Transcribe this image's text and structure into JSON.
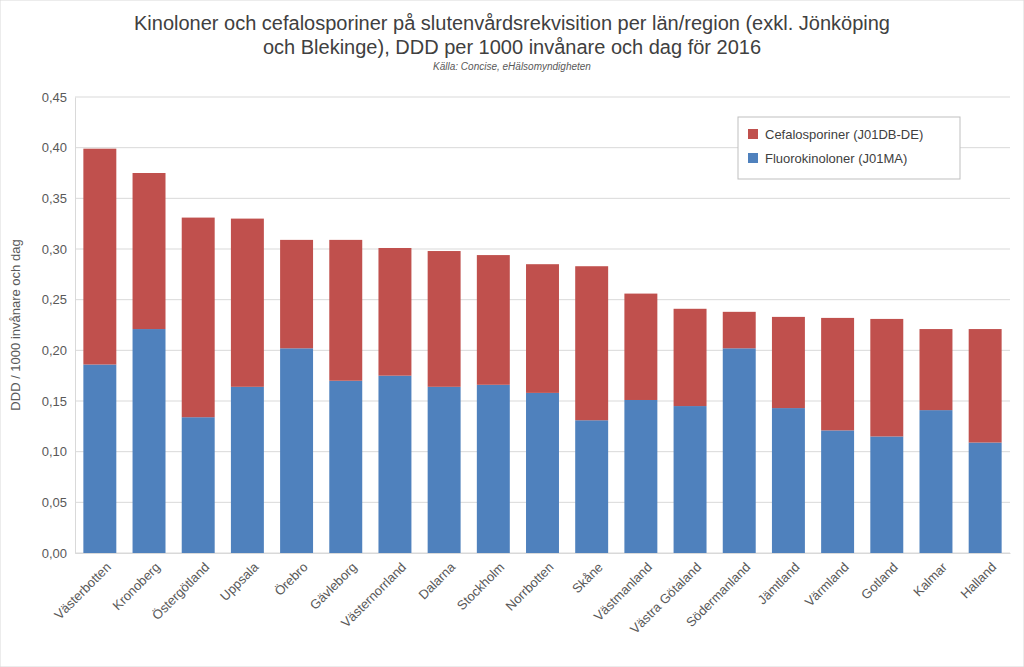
{
  "chart_data": {
    "type": "bar",
    "title": "Kinoloner och cefalosporiner på slutenvårdsrekvisition per län/region (exkl. Jönköping och Blekinge), DDD per 1000 invånare och dag för 2016",
    "subtitle": "Källa: Concise, eHälsomyndigheten",
    "y_label": "DDD / 1000 invånare och dag",
    "stacked": true,
    "grid": true,
    "legend": "top-right",
    "categories": [
      "Västerbotten",
      "Kronoberg",
      "Östergötland",
      "Uppsala",
      "Örebro",
      "Gävleborg",
      "Västernorrland",
      "Dalarna",
      "Stockholm",
      "Norrbotten",
      "Skåne",
      "Västmanland",
      "Västra Götaland",
      "Södermanland",
      "Jämtland",
      "Värmland",
      "Gotland",
      "Kalmar",
      "Halland"
    ],
    "series": [
      {
        "name": "Fluorokinoloner (J01MA)",
        "color": "#4f81bd",
        "values": [
          0.186,
          0.221,
          0.134,
          0.164,
          0.202,
          0.17,
          0.175,
          0.164,
          0.166,
          0.158,
          0.131,
          0.151,
          0.145,
          0.202,
          0.143,
          0.121,
          0.115,
          0.141,
          0.109
        ]
      },
      {
        "name": "Cefalosporiner (J01DB-DE)",
        "color": "#c0504d",
        "values": [
          0.213,
          0.154,
          0.197,
          0.166,
          0.107,
          0.139,
          0.126,
          0.134,
          0.128,
          0.127,
          0.152,
          0.105,
          0.096,
          0.036,
          0.09,
          0.111,
          0.116,
          0.08,
          0.112
        ]
      }
    ],
    "ylim": [
      0,
      0.45
    ],
    "yticks": [
      {
        "value": 0,
        "label": "0,00"
      },
      {
        "value": 0.05,
        "label": "0,05"
      },
      {
        "value": 0.1,
        "label": "0,10"
      },
      {
        "value": 0.15,
        "label": "0,15"
      },
      {
        "value": 0.2,
        "label": "0,20"
      },
      {
        "value": 0.25,
        "label": "0,25"
      },
      {
        "value": 0.3,
        "label": "0,30"
      },
      {
        "value": 0.35,
        "label": "0,35"
      },
      {
        "value": 0.4,
        "label": "0,40"
      },
      {
        "value": 0.45,
        "label": "0,45"
      }
    ]
  }
}
